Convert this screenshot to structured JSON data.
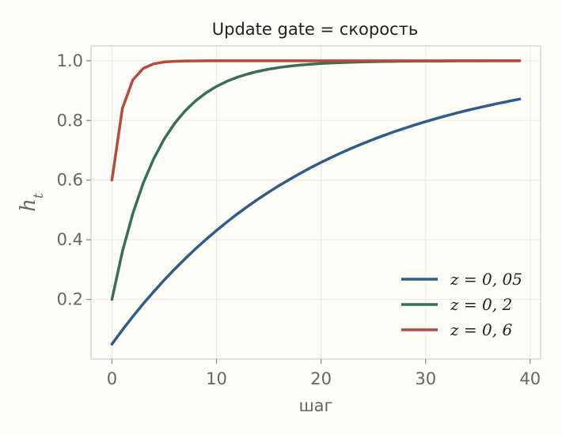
{
  "chart_data": {
    "type": "line",
    "title": "Update gate = скорость",
    "xlabel": "шаг",
    "ylabel": "h_t",
    "xlim": [
      -2,
      41
    ],
    "ylim": [
      0.0,
      1.05
    ],
    "x_ticks": [
      0,
      10,
      20,
      30,
      40
    ],
    "y_ticks": [
      0.2,
      0.4,
      0.6,
      0.8,
      1.0
    ],
    "x_tick_labels": [
      "0",
      "10",
      "20",
      "30",
      "40"
    ],
    "y_tick_labels": [
      "0.2",
      "0.4",
      "0.6",
      "0.8",
      "1.0"
    ],
    "grid": true,
    "legend_position": "lower-right",
    "x": [
      0,
      1,
      2,
      3,
      4,
      5,
      6,
      7,
      8,
      9,
      10,
      11,
      12,
      13,
      14,
      15,
      16,
      17,
      18,
      19,
      20,
      21,
      22,
      23,
      24,
      25,
      26,
      27,
      28,
      29,
      30,
      31,
      32,
      33,
      34,
      35,
      36,
      37,
      38,
      39
    ],
    "series": [
      {
        "name": "z = 0, 05",
        "color": "#2f5d8a",
        "values": [
          0.05,
          0.0975,
          0.1426,
          0.1855,
          0.2262,
          0.2649,
          0.3017,
          0.3366,
          0.3698,
          0.4013,
          0.4312,
          0.4596,
          0.4867,
          0.5123,
          0.5367,
          0.5599,
          0.5819,
          0.6028,
          0.6226,
          0.6415,
          0.6594,
          0.6765,
          0.6926,
          0.708,
          0.7226,
          0.7365,
          0.7497,
          0.7622,
          0.7741,
          0.7854,
          0.7961,
          0.8063,
          0.816,
          0.8252,
          0.8339,
          0.8422,
          0.8501,
          0.8576,
          0.8647,
          0.8715
        ]
      },
      {
        "name": "z = 0, 2",
        "color": "#37705a",
        "values": [
          0.2,
          0.36,
          0.488,
          0.5904,
          0.6723,
          0.7379,
          0.7903,
          0.8322,
          0.8658,
          0.8926,
          0.9141,
          0.9313,
          0.945,
          0.956,
          0.9648,
          0.9719,
          0.9775,
          0.982,
          0.9856,
          0.9885,
          0.9908,
          0.9926,
          0.9941,
          0.9953,
          0.9962,
          0.997,
          0.9976,
          0.9981,
          0.9985,
          0.9988,
          0.999,
          0.9992,
          0.9994,
          0.9995,
          0.9996,
          0.9997,
          0.9998,
          0.9998,
          0.9999,
          0.9999
        ]
      },
      {
        "name": "z = 0, 6",
        "color": "#b74a3d",
        "values": [
          0.6,
          0.84,
          0.936,
          0.9744,
          0.9898,
          0.9959,
          0.9984,
          0.9993,
          0.9997,
          0.9999,
          1.0,
          1.0,
          1.0,
          1.0,
          1.0,
          1.0,
          1.0,
          1.0,
          1.0,
          1.0,
          1.0,
          1.0,
          1.0,
          1.0,
          1.0,
          1.0,
          1.0,
          1.0,
          1.0,
          1.0,
          1.0,
          1.0,
          1.0,
          1.0,
          1.0,
          1.0,
          1.0,
          1.0,
          1.0,
          1.0
        ]
      }
    ]
  }
}
